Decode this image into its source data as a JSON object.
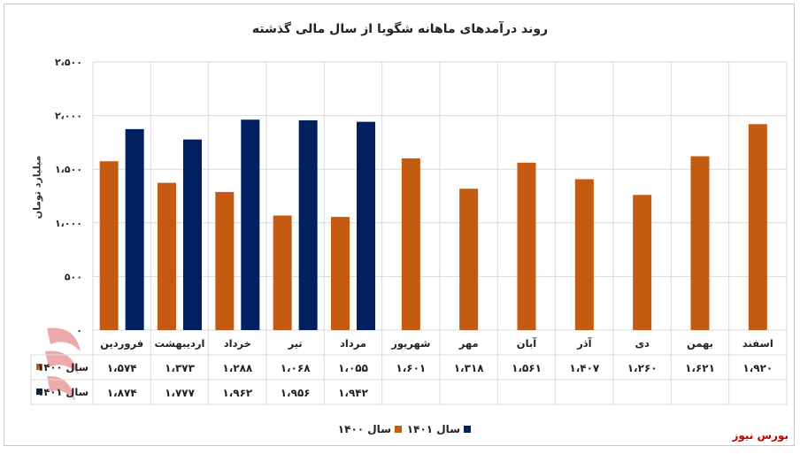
{
  "title": "روند درآمدهای ماهانه شگویا از سال مالی گذشته",
  "brand": "بورس نیوز",
  "colors": {
    "s1400": "#c55a11",
    "s1401": "#002060",
    "grid": "#d9d9d9",
    "text": "#222222"
  },
  "chart_data": {
    "type": "bar",
    "title": "روند درآمدهای ماهانه شگویا از سال مالی گذشته",
    "ylabel": "میلیارد تومان",
    "xlabel": "",
    "ylim": [
      0,
      2500
    ],
    "yticks": [
      0,
      500,
      1000,
      1500,
      2000,
      2500
    ],
    "ytick_labels": [
      "۰",
      "۵۰۰",
      "۱،۰۰۰",
      "۱،۵۰۰",
      "۲،۰۰۰",
      "۲،۵۰۰"
    ],
    "grid": true,
    "legend": "bottom",
    "categories": [
      "فروردین",
      "اردیبهشت",
      "خرداد",
      "تیر",
      "مرداد",
      "شهریور",
      "مهر",
      "آبان",
      "آذر",
      "دی",
      "بهمن",
      "اسفند"
    ],
    "series": [
      {
        "name": "سال ۱۴۰۰",
        "color": "#c55a11",
        "values": [
          1574,
          1373,
          1288,
          1068,
          1055,
          1601,
          1318,
          1561,
          1407,
          1260,
          1621,
          1920
        ],
        "labels": [
          "۱،۵۷۴",
          "۱،۳۷۳",
          "۱،۲۸۸",
          "۱،۰۶۸",
          "۱،۰۵۵",
          "۱،۶۰۱",
          "۱،۳۱۸",
          "۱،۵۶۱",
          "۱،۴۰۷",
          "۱،۲۶۰",
          "۱،۶۲۱",
          "۱،۹۲۰"
        ]
      },
      {
        "name": "سال ۱۴۰۱",
        "color": "#002060",
        "values": [
          1874,
          1777,
          1962,
          1956,
          1942,
          null,
          null,
          null,
          null,
          null,
          null,
          null
        ],
        "labels": [
          "۱،۸۷۴",
          "۱،۷۷۷",
          "۱،۹۶۲",
          "۱،۹۵۶",
          "۱،۹۴۲",
          "",
          "",
          "",
          "",
          "",
          "",
          ""
        ]
      }
    ]
  }
}
